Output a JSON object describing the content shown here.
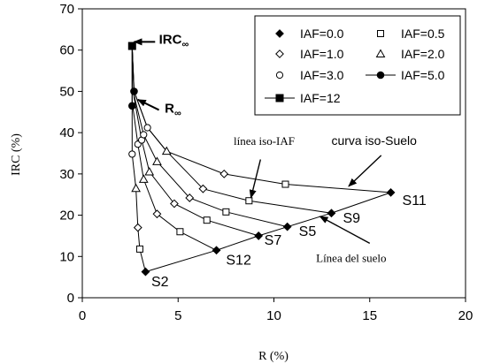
{
  "chart_data": {
    "type": "scatter",
    "xlabel": "R (%)",
    "ylabel": "IRC (%)",
    "xlim": [
      0,
      20
    ],
    "ylim": [
      0,
      70
    ],
    "x_ticks": [
      0,
      5,
      10,
      15,
      20
    ],
    "y_ticks": [
      0,
      10,
      20,
      30,
      40,
      50,
      60,
      70
    ],
    "grid": false,
    "legend_position": "top-right",
    "series": [
      {
        "name": "IAF=0.0",
        "marker": "diamond-filled",
        "x": [
          3.3,
          7.0,
          9.2,
          10.7,
          13.0,
          16.1
        ],
        "y": [
          6.3,
          11.5,
          15.0,
          17.2,
          20.5,
          25.5
        ]
      },
      {
        "name": "IAF=0.5",
        "marker": "square-open",
        "x": [
          3.0,
          5.1,
          6.5,
          7.5,
          8.7,
          10.6
        ],
        "y": [
          11.8,
          16.0,
          18.8,
          20.8,
          23.5,
          27.5
        ]
      },
      {
        "name": "IAF=1.0",
        "marker": "diamond-open",
        "x": [
          2.9,
          3.9,
          4.8,
          5.6,
          6.3,
          7.4
        ],
        "y": [
          17.0,
          20.3,
          22.8,
          24.2,
          26.4,
          30.0
        ]
      },
      {
        "name": "IAF=2.0",
        "marker": "triangle-open",
        "x": [
          2.8,
          3.2,
          3.5,
          3.9,
          4.4
        ],
        "y": [
          26.5,
          28.7,
          30.5,
          33.0,
          35.5
        ]
      },
      {
        "name": "IAF=3.0",
        "marker": "circle-open",
        "x": [
          2.6,
          2.9,
          3.1,
          3.2,
          3.4
        ],
        "y": [
          34.8,
          37.2,
          38.2,
          39.5,
          41.2
        ]
      },
      {
        "name": "IAF=5.0",
        "marker": "circle-filled",
        "x": [
          2.6,
          2.7
        ],
        "y": [
          46.5,
          50.0
        ]
      },
      {
        "name": "IAF=12",
        "marker": "square-filled",
        "x": [
          2.6
        ],
        "y": [
          61.0
        ]
      }
    ],
    "iso_iaf_lines": [
      [
        [
          3.3,
          6.3
        ],
        [
          3.0,
          11.8
        ],
        [
          2.9,
          17.0
        ],
        [
          2.8,
          26.5
        ],
        [
          2.6,
          34.8
        ],
        [
          2.6,
          46.5
        ],
        [
          2.6,
          61.0
        ]
      ],
      [
        [
          7.0,
          11.5
        ],
        [
          5.1,
          16.0
        ],
        [
          3.9,
          20.3
        ],
        [
          3.2,
          28.7
        ],
        [
          2.9,
          37.2
        ],
        [
          2.6,
          47.5
        ],
        [
          2.6,
          61.0
        ]
      ],
      [
        [
          9.2,
          15.0
        ],
        [
          6.5,
          18.8
        ],
        [
          4.8,
          22.8
        ],
        [
          3.5,
          30.5
        ],
        [
          3.1,
          38.2
        ],
        [
          2.7,
          48.5
        ],
        [
          2.6,
          61.0
        ]
      ],
      [
        [
          10.7,
          17.2
        ],
        [
          7.5,
          20.8
        ],
        [
          5.6,
          24.2
        ],
        [
          3.9,
          33.0
        ],
        [
          3.2,
          39.5
        ],
        [
          2.7,
          49.0
        ],
        [
          2.6,
          61.0
        ]
      ],
      [
        [
          13.0,
          20.5
        ],
        [
          8.7,
          23.5
        ],
        [
          6.3,
          26.4
        ],
        [
          4.4,
          35.5
        ],
        [
          3.4,
          41.2
        ],
        [
          2.7,
          50.0
        ],
        [
          2.6,
          61.0
        ]
      ],
      [
        [
          16.1,
          25.5
        ],
        [
          10.6,
          27.5
        ],
        [
          7.4,
          30.0
        ],
        [
          4.4,
          35.5
        ],
        [
          3.4,
          41.2
        ],
        [
          2.7,
          50.0
        ],
        [
          2.6,
          61.0
        ]
      ]
    ],
    "soil_line": [
      [
        3.3,
        6.3
      ],
      [
        7.0,
        11.5
      ],
      [
        9.2,
        15.0
      ],
      [
        10.7,
        17.2
      ],
      [
        13.0,
        20.5
      ],
      [
        16.1,
        25.5
      ]
    ],
    "soil_labels": [
      {
        "text": "S2",
        "x": 3.6,
        "y": 2.8
      },
      {
        "text": "S12",
        "x": 7.5,
        "y": 8.0
      },
      {
        "text": "S7",
        "x": 9.5,
        "y": 12.8
      },
      {
        "text": "S5",
        "x": 11.3,
        "y": 15.0
      },
      {
        "text": "S9",
        "x": 13.6,
        "y": 18.2
      },
      {
        "text": "S11",
        "x": 16.7,
        "y": 22.5
      }
    ],
    "annotations": [
      {
        "id": "irc-inf",
        "main": "IRC",
        "sub": "∞",
        "x": 4.0,
        "y": 61.5,
        "arrow_from": [
          3.8,
          62.0
        ],
        "arrow_to": [
          2.7,
          62.0
        ],
        "bold": true
      },
      {
        "id": "r-inf",
        "main": "R",
        "sub": "∞",
        "x": 4.3,
        "y": 44.8,
        "arrow_from": [
          4.0,
          45.5
        ],
        "arrow_to": [
          2.9,
          48.0
        ],
        "bold": true
      },
      {
        "id": "iso-iaf",
        "text": "línea iso-IAF",
        "x": 7.9,
        "y": 37.0,
        "arrow_from": [
          9.3,
          33.5
        ],
        "arrow_to": [
          8.8,
          24.2
        ],
        "style": "serif"
      },
      {
        "id": "iso-suelo",
        "text": "curva iso-Suelo",
        "x": 13.0,
        "y": 37.0,
        "arrow_from": [
          15.6,
          34.5
        ],
        "arrow_to": [
          13.9,
          27.0
        ],
        "style": "sans"
      },
      {
        "id": "soil-line",
        "text": "Línea del suelo",
        "x": 12.2,
        "y": 8.7,
        "arrow_from": [
          15.0,
          13.2
        ],
        "arrow_to": [
          12.4,
          19.7
        ],
        "style": "serif"
      }
    ]
  }
}
